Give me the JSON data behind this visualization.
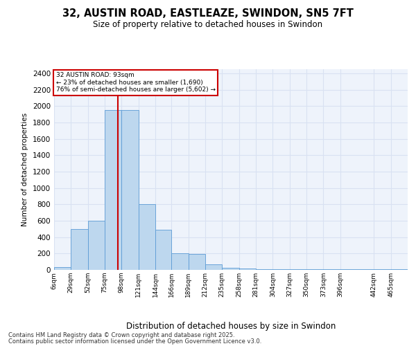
{
  "title_line1": "32, AUSTIN ROAD, EASTLEAZE, SWINDON, SN5 7FT",
  "title_line2": "Size of property relative to detached houses in Swindon",
  "xlabel": "Distribution of detached houses by size in Swindon",
  "ylabel": "Number of detached properties",
  "annotation_line1": "32 AUSTIN ROAD: 93sqm",
  "annotation_line2": "← 23% of detached houses are smaller (1,690)",
  "annotation_line3": "76% of semi-detached houses are larger (5,602) →",
  "property_line_x": 93,
  "categories": [
    "6sqm",
    "29sqm",
    "52sqm",
    "75sqm",
    "98sqm",
    "121sqm",
    "144sqm",
    "166sqm",
    "189sqm",
    "212sqm",
    "235sqm",
    "258sqm",
    "281sqm",
    "304sqm",
    "327sqm",
    "350sqm",
    "373sqm",
    "396sqm",
    "442sqm",
    "465sqm"
  ],
  "bin_edges": [
    6,
    29,
    52,
    75,
    98,
    121,
    144,
    166,
    189,
    212,
    235,
    258,
    281,
    304,
    327,
    350,
    373,
    396,
    442,
    465,
    488
  ],
  "values": [
    30,
    500,
    600,
    1950,
    1950,
    800,
    490,
    200,
    195,
    70,
    25,
    15,
    10,
    10,
    10,
    5,
    5,
    5,
    5,
    10
  ],
  "bar_color": "#BDD7EE",
  "bar_edge_color": "#5B9BD5",
  "grid_color": "#D9E1F2",
  "bg_color": "#EEF3FB",
  "annotation_box_color": "#CC0000",
  "property_line_color": "#CC0000",
  "footnote_line1": "Contains HM Land Registry data © Crown copyright and database right 2025.",
  "footnote_line2": "Contains public sector information licensed under the Open Government Licence v3.0.",
  "ylim": [
    0,
    2450
  ],
  "yticks": [
    0,
    200,
    400,
    600,
    800,
    1000,
    1200,
    1400,
    1600,
    1800,
    2000,
    2200,
    2400
  ]
}
